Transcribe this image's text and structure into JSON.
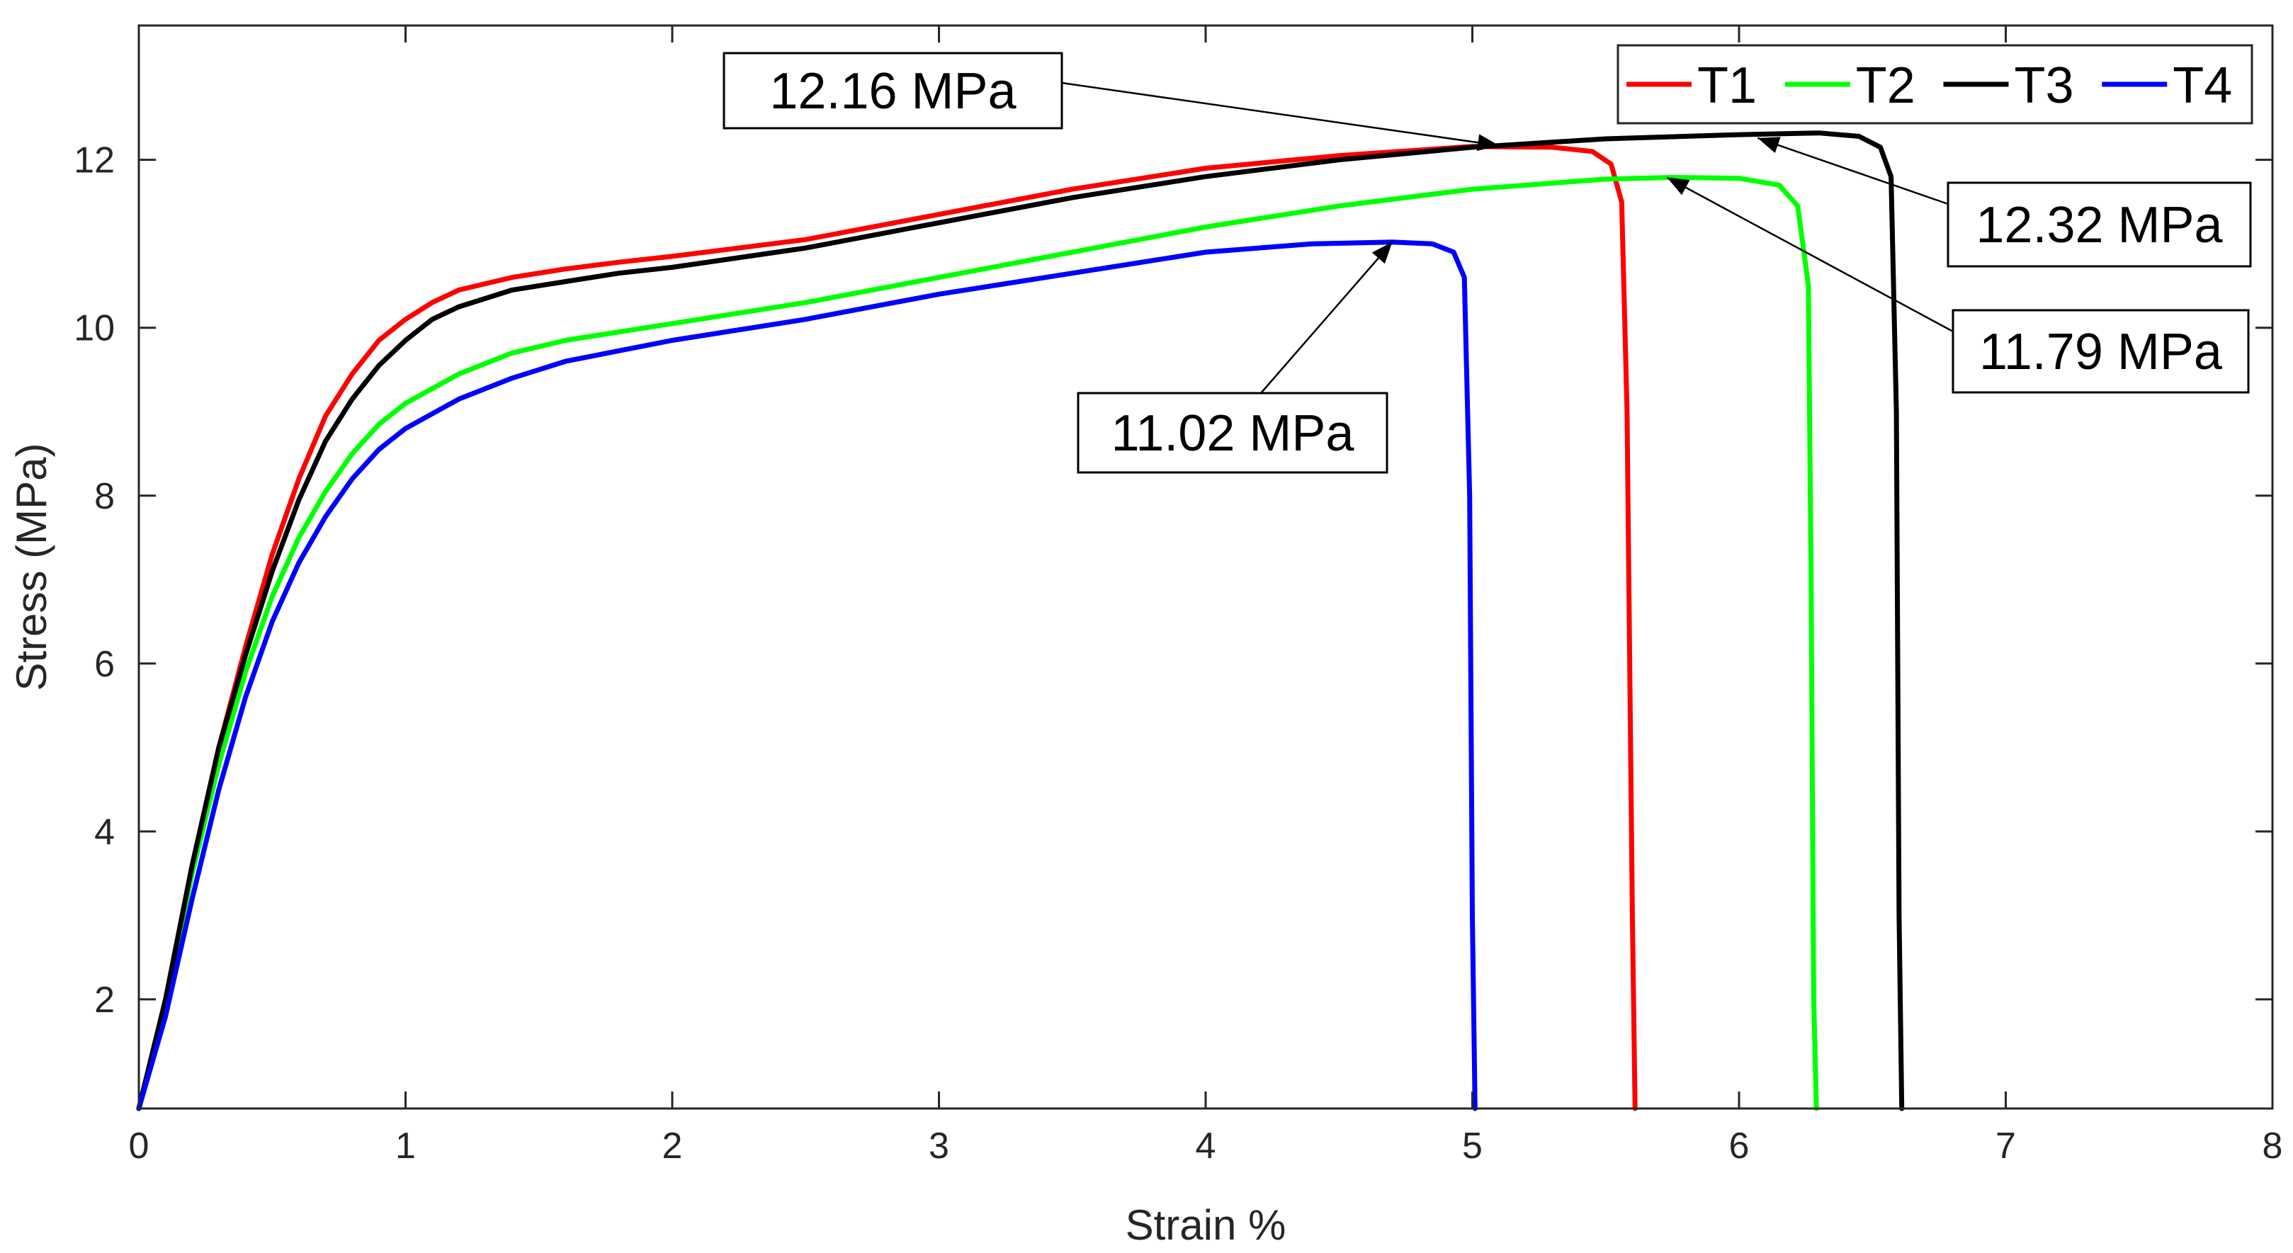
{
  "chart_data": {
    "type": "line",
    "title": "",
    "xlabel": "Strain %",
    "ylabel": "Stress (MPa)",
    "xlim": [
      0,
      8
    ],
    "ylim": [
      0.7,
      13.6
    ],
    "xticks": [
      "0",
      "1",
      "2",
      "3",
      "4",
      "5",
      "6",
      "7",
      "8"
    ],
    "yticks": [
      "2",
      "4",
      "6",
      "8",
      "10",
      "12"
    ],
    "grid": false,
    "legend": {
      "position": "top-right",
      "orientation": "horizontal"
    },
    "series": [
      {
        "name": "T1",
        "color": "#ff0000",
        "x": [
          0,
          0.1,
          0.2,
          0.3,
          0.4,
          0.5,
          0.6,
          0.7,
          0.8,
          0.9,
          1.0,
          1.1,
          1.2,
          1.4,
          1.6,
          1.8,
          2.0,
          2.5,
          3.0,
          3.5,
          4.0,
          4.5,
          5.0,
          5.3,
          5.45,
          5.52,
          5.56,
          5.58,
          5.6,
          5.61
        ],
        "y": [
          0.7,
          2.0,
          3.6,
          5.0,
          6.2,
          7.3,
          8.2,
          8.95,
          9.45,
          9.85,
          10.1,
          10.3,
          10.45,
          10.6,
          10.7,
          10.78,
          10.85,
          11.05,
          11.35,
          11.65,
          11.9,
          12.05,
          12.16,
          12.15,
          12.1,
          11.95,
          11.5,
          9.0,
          3.0,
          0.7
        ]
      },
      {
        "name": "T2",
        "color": "#00ff00",
        "x": [
          0,
          0.1,
          0.2,
          0.3,
          0.4,
          0.5,
          0.6,
          0.7,
          0.8,
          0.9,
          1.0,
          1.2,
          1.4,
          1.6,
          2.0,
          2.5,
          3.0,
          3.5,
          4.0,
          4.5,
          5.0,
          5.5,
          5.75,
          6.0,
          6.15,
          6.22,
          6.26,
          6.27,
          6.28,
          6.29
        ],
        "y": [
          0.7,
          2.0,
          3.5,
          4.8,
          5.9,
          6.8,
          7.5,
          8.05,
          8.5,
          8.85,
          9.1,
          9.45,
          9.7,
          9.85,
          10.05,
          10.3,
          10.6,
          10.9,
          11.2,
          11.45,
          11.65,
          11.77,
          11.79,
          11.78,
          11.7,
          11.45,
          10.5,
          7.0,
          2.0,
          0.7
        ]
      },
      {
        "name": "T3",
        "color": "#000000",
        "x": [
          0,
          0.1,
          0.2,
          0.3,
          0.4,
          0.5,
          0.6,
          0.7,
          0.8,
          0.9,
          1.0,
          1.1,
          1.2,
          1.4,
          1.6,
          1.8,
          2.0,
          2.5,
          3.0,
          3.5,
          4.0,
          4.5,
          5.0,
          5.5,
          6.0,
          6.3,
          6.45,
          6.53,
          6.57,
          6.59,
          6.6,
          6.61
        ],
        "y": [
          0.7,
          2.0,
          3.6,
          5.0,
          6.1,
          7.1,
          7.95,
          8.65,
          9.15,
          9.55,
          9.85,
          10.1,
          10.25,
          10.45,
          10.55,
          10.65,
          10.72,
          10.95,
          11.25,
          11.55,
          11.8,
          12.0,
          12.15,
          12.25,
          12.3,
          12.32,
          12.28,
          12.15,
          11.8,
          9.0,
          3.0,
          0.7
        ]
      },
      {
        "name": "T4",
        "color": "#0000ff",
        "x": [
          0,
          0.1,
          0.2,
          0.3,
          0.4,
          0.5,
          0.6,
          0.7,
          0.8,
          0.9,
          1.0,
          1.2,
          1.4,
          1.6,
          2.0,
          2.5,
          3.0,
          3.5,
          4.0,
          4.4,
          4.7,
          4.85,
          4.93,
          4.97,
          4.99,
          5.0,
          5.01
        ],
        "y": [
          0.7,
          1.8,
          3.2,
          4.5,
          5.6,
          6.5,
          7.2,
          7.75,
          8.2,
          8.55,
          8.8,
          9.15,
          9.4,
          9.6,
          9.85,
          10.1,
          10.4,
          10.65,
          10.9,
          11.0,
          11.02,
          11.0,
          10.9,
          10.6,
          8.0,
          3.0,
          0.7
        ]
      }
    ],
    "annotations": [
      {
        "text": "12.16 MPa",
        "point": [
          5.1,
          12.17
        ]
      },
      {
        "text": "12.32 MPa",
        "point": [
          6.07,
          12.26
        ]
      },
      {
        "text": "11.79 MPa",
        "point": [
          5.73,
          11.79
        ]
      },
      {
        "text": "11.02 MPa",
        "point": [
          4.7,
          11.02
        ]
      }
    ]
  }
}
